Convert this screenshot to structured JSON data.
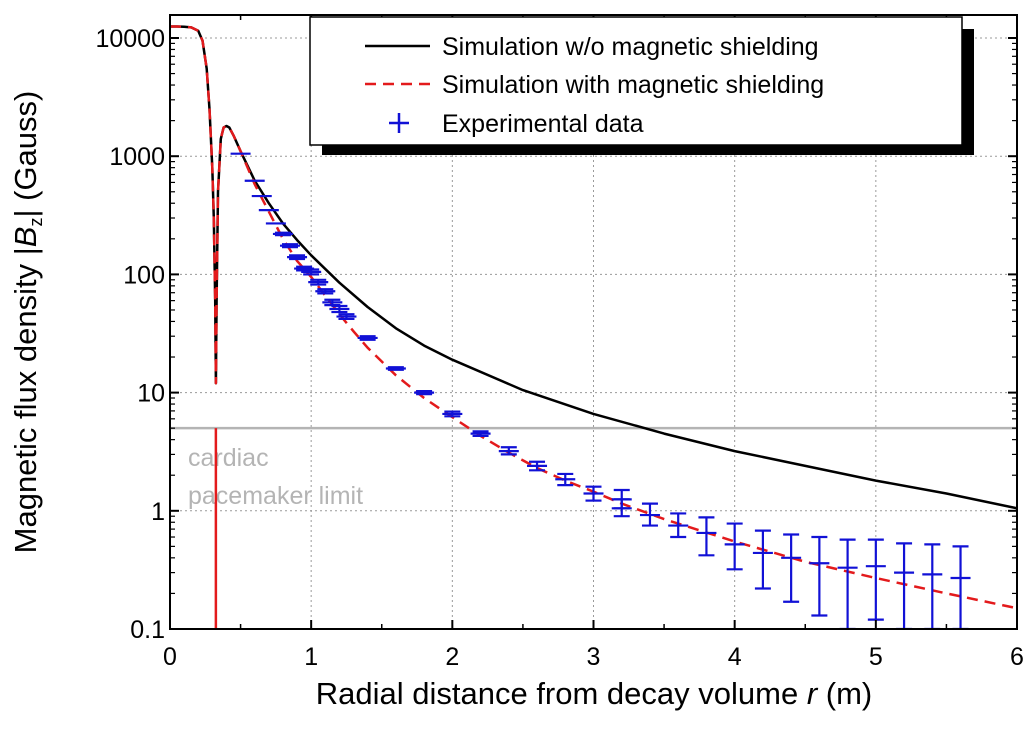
{
  "chart_data": {
    "type": "line",
    "title": "",
    "xlabel": "Radial distance from decay volume ",
    "xlabel_var": "r",
    "xlabel_unit": " (m)",
    "ylabel": "Magnetic flux density |",
    "ylabel_var": "B",
    "ylabel_sub": "z",
    "ylabel_unit": "| (Gauss)",
    "xlim": [
      0,
      6
    ],
    "ylim": [
      0.1,
      10000
    ],
    "yscale": "log",
    "grid": true,
    "x_ticks": [
      0,
      1,
      2,
      3,
      4,
      5,
      6
    ],
    "x_tick_labels": [
      "0",
      "1",
      "2",
      "3",
      "4",
      "5",
      "6"
    ],
    "y_ticks": [
      0.1,
      1,
      10,
      100,
      1000,
      10000
    ],
    "y_tick_labels": [
      "0.1",
      "1",
      "10",
      "100",
      "1000",
      "10000"
    ],
    "legend_position": "top-right",
    "legend": [
      "Simulation w/o  magnetic shielding",
      "Simulation with magnetic shielding",
      "Experimental data"
    ],
    "reference_line": {
      "y": 5,
      "label_lines": [
        "cardiac",
        "pacemaker limit"
      ],
      "color": "#b4b4b4"
    },
    "series": [
      {
        "name": "Simulation w/o  magnetic shielding",
        "color": "#000000",
        "style": "solid",
        "x": [
          0,
          0.05,
          0.1,
          0.15,
          0.2,
          0.23,
          0.26,
          0.28,
          0.3,
          0.31,
          0.32,
          0.325,
          0.33,
          0.34,
          0.36,
          0.38,
          0.4,
          0.42,
          0.45,
          0.5,
          0.6,
          0.7,
          0.8,
          0.9,
          1.0,
          1.2,
          1.4,
          1.6,
          1.8,
          2.0,
          2.5,
          3.0,
          3.5,
          4.0,
          4.5,
          5.0,
          5.5,
          6.0
        ],
        "y": [
          12500,
          12500,
          12450,
          12300,
          11500,
          9500,
          5500,
          2500,
          800,
          300,
          60,
          12,
          60,
          500,
          1400,
          1750,
          1800,
          1750,
          1500,
          1100,
          620,
          400,
          270,
          195,
          145,
          85,
          53,
          35,
          25,
          19,
          10.5,
          6.6,
          4.5,
          3.2,
          2.4,
          1.8,
          1.4,
          1.05
        ]
      },
      {
        "name": "Simulation with magnetic shielding",
        "color": "#e31a1c",
        "style": "dashed",
        "x": [
          0,
          0.05,
          0.1,
          0.15,
          0.2,
          0.23,
          0.26,
          0.28,
          0.3,
          0.31,
          0.32,
          0.325,
          0.33,
          0.34,
          0.36,
          0.38,
          0.4,
          0.42,
          0.45,
          0.5,
          0.6,
          0.7,
          0.8,
          0.9,
          1.0,
          1.1,
          1.2,
          1.3,
          1.4,
          1.6,
          1.8,
          2.0,
          2.2,
          2.4,
          2.6,
          2.8,
          3.0,
          3.2,
          3.5,
          4.0,
          4.5,
          5.0,
          5.5,
          6.0
        ],
        "y": [
          12500,
          12500,
          12450,
          12300,
          11500,
          9500,
          5500,
          2500,
          800,
          300,
          60,
          12,
          60,
          500,
          1400,
          1750,
          1800,
          1750,
          1500,
          1100,
          580,
          340,
          200,
          130,
          95,
          66,
          46,
          33,
          24,
          14,
          9,
          6.2,
          4.3,
          3.1,
          2.3,
          1.8,
          1.45,
          1.15,
          0.85,
          0.55,
          0.37,
          0.27,
          0.2,
          0.15
        ]
      }
    ],
    "spike": {
      "x": 0.325,
      "y_from": 5,
      "y_to": 0.1,
      "color": "#e31a1c"
    },
    "experimental_data": {
      "name": "Experimental data",
      "color": "#1111d6",
      "points": [
        {
          "x": 0.5,
          "y": 1050,
          "lo": 1050,
          "hi": 1050
        },
        {
          "x": 0.6,
          "y": 620,
          "lo": 620,
          "hi": 620
        },
        {
          "x": 0.65,
          "y": 460,
          "lo": 460,
          "hi": 460
        },
        {
          "x": 0.7,
          "y": 350,
          "lo": 350,
          "hi": 350
        },
        {
          "x": 0.75,
          "y": 270,
          "lo": 265,
          "hi": 275
        },
        {
          "x": 0.8,
          "y": 220,
          "lo": 215,
          "hi": 225
        },
        {
          "x": 0.85,
          "y": 175,
          "lo": 170,
          "hi": 180
        },
        {
          "x": 0.9,
          "y": 140,
          "lo": 135,
          "hi": 145
        },
        {
          "x": 0.95,
          "y": 112,
          "lo": 108,
          "hi": 116
        },
        {
          "x": 1.0,
          "y": 105,
          "lo": 100,
          "hi": 110
        },
        {
          "x": 1.05,
          "y": 86,
          "lo": 82,
          "hi": 90
        },
        {
          "x": 1.1,
          "y": 72,
          "lo": 69,
          "hi": 75
        },
        {
          "x": 1.15,
          "y": 58,
          "lo": 55,
          "hi": 61
        },
        {
          "x": 1.2,
          "y": 51,
          "lo": 48,
          "hi": 54
        },
        {
          "x": 1.25,
          "y": 44,
          "lo": 42,
          "hi": 46
        },
        {
          "x": 1.4,
          "y": 29,
          "lo": 28,
          "hi": 30
        },
        {
          "x": 1.6,
          "y": 16,
          "lo": 15.6,
          "hi": 16.4
        },
        {
          "x": 1.8,
          "y": 10,
          "lo": 9.7,
          "hi": 10.3
        },
        {
          "x": 2.0,
          "y": 6.6,
          "lo": 6.3,
          "hi": 6.9
        },
        {
          "x": 2.2,
          "y": 4.5,
          "lo": 4.3,
          "hi": 4.7
        },
        {
          "x": 2.4,
          "y": 3.2,
          "lo": 3.0,
          "hi": 3.45
        },
        {
          "x": 2.6,
          "y": 2.4,
          "lo": 2.2,
          "hi": 2.6
        },
        {
          "x": 2.8,
          "y": 1.85,
          "lo": 1.65,
          "hi": 2.05
        },
        {
          "x": 3.0,
          "y": 1.4,
          "lo": 1.22,
          "hi": 1.6
        },
        {
          "x": 3.2,
          "y": 1.25,
          "lo": 1.05,
          "hi": 1.5
        },
        {
          "x": 3.2,
          "y": 1.05,
          "lo": 0.9,
          "hi": 1.25
        },
        {
          "x": 3.4,
          "y": 0.92,
          "lo": 0.75,
          "hi": 1.15
        },
        {
          "x": 3.6,
          "y": 0.75,
          "lo": 0.6,
          "hi": 0.95
        },
        {
          "x": 3.8,
          "y": 0.65,
          "lo": 0.42,
          "hi": 0.88
        },
        {
          "x": 4.0,
          "y": 0.52,
          "lo": 0.32,
          "hi": 0.78
        },
        {
          "x": 4.2,
          "y": 0.44,
          "lo": 0.22,
          "hi": 0.68
        },
        {
          "x": 4.4,
          "y": 0.4,
          "lo": 0.17,
          "hi": 0.63
        },
        {
          "x": 4.6,
          "y": 0.36,
          "lo": 0.13,
          "hi": 0.6
        },
        {
          "x": 4.8,
          "y": 0.33,
          "lo": 0.1,
          "hi": 0.57
        },
        {
          "x": 5.0,
          "y": 0.34,
          "lo": 0.12,
          "hi": 0.57
        },
        {
          "x": 5.2,
          "y": 0.3,
          "lo": 0.1,
          "hi": 0.53
        },
        {
          "x": 5.4,
          "y": 0.29,
          "lo": 0.1,
          "hi": 0.52
        },
        {
          "x": 5.6,
          "y": 0.27,
          "lo": 0.1,
          "hi": 0.5
        }
      ]
    }
  }
}
